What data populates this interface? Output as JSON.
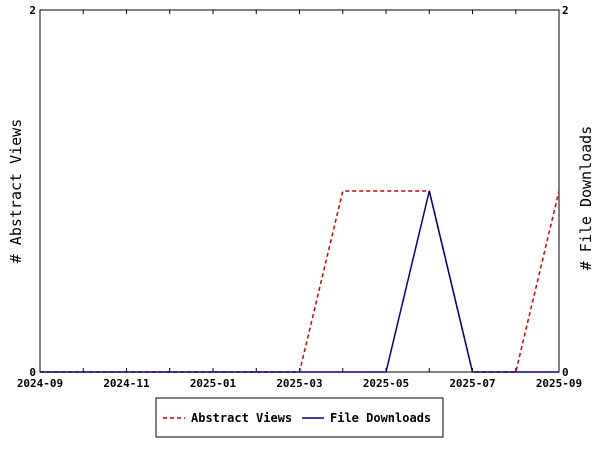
{
  "chart_data": {
    "type": "line",
    "x": [
      "2024-09",
      "2024-10",
      "2024-11",
      "2024-12",
      "2025-01",
      "2025-02",
      "2025-03",
      "2025-04",
      "2025-05",
      "2025-06",
      "2025-07",
      "2025-08",
      "2025-09"
    ],
    "x_tick_labels": [
      "2024-09",
      "2024-11",
      "2025-01",
      "2025-03",
      "2025-05",
      "2025-07",
      "2025-09"
    ],
    "series": [
      {
        "name": "Abstract Views",
        "axis": "left",
        "color": "#cc0000",
        "dash": "dashed",
        "values": [
          0,
          0,
          0,
          0,
          0,
          0,
          0,
          1,
          1,
          1,
          0,
          0,
          1
        ]
      },
      {
        "name": "File Downloads",
        "axis": "right",
        "color": "#00008b",
        "dash": "solid",
        "values": [
          0,
          0,
          0,
          0,
          0,
          0,
          0,
          0,
          0,
          1,
          0,
          0,
          0
        ]
      }
    ],
    "ylabel_left": "# Abstract Views",
    "ylabel_right": "# File Downloads",
    "ylim_left": [
      0,
      2
    ],
    "ylim_right": [
      0,
      2
    ],
    "y_tick_labels_left": [
      "0",
      "2"
    ],
    "y_tick_labels_right": [
      "0",
      "2"
    ],
    "grid": false,
    "legend_position": "bottom-center"
  }
}
